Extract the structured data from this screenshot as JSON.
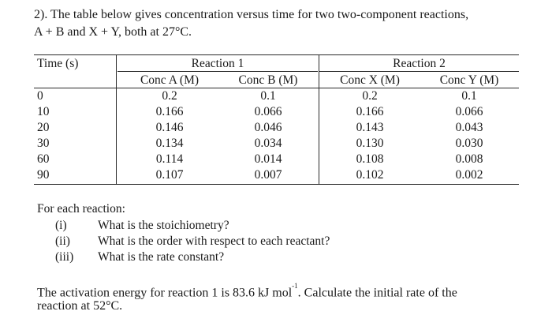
{
  "problem": {
    "line1": "2). The table below gives concentration versus time for two two-component reactions,",
    "line2": "A + B and X + Y, both at 27°C."
  },
  "table": {
    "time_header": "Time (s)",
    "reaction1_header": "Reaction 1",
    "reaction2_header": "Reaction 2",
    "col_a": "Conc A (M)",
    "col_b": "Conc B (M)",
    "col_x": "Conc X (M)",
    "col_y": "Conc Y (M)",
    "rows": [
      {
        "t": "0",
        "a": "0.2",
        "b": "0.1",
        "x": "0.2",
        "y": "0.1"
      },
      {
        "t": "10",
        "a": "0.166",
        "b": "0.066",
        "x": "0.166",
        "y": "0.066"
      },
      {
        "t": "20",
        "a": "0.146",
        "b": "0.046",
        "x": "0.143",
        "y": "0.043"
      },
      {
        "t": "30",
        "a": "0.134",
        "b": "0.034",
        "x": "0.130",
        "y": "0.030"
      },
      {
        "t": "60",
        "a": "0.114",
        "b": "0.014",
        "x": "0.108",
        "y": "0.008"
      },
      {
        "t": "90",
        "a": "0.107",
        "b": "0.007",
        "x": "0.102",
        "y": "0.002"
      }
    ]
  },
  "questions": {
    "lead": "For each reaction:",
    "items": [
      {
        "num": "(i)",
        "text": "What is the stoichiometry?"
      },
      {
        "num": "(ii)",
        "text": "What is the order with respect to each reactant?"
      },
      {
        "num": "(iii)",
        "text": "What is the rate constant?"
      }
    ]
  },
  "activation": {
    "line1_a": "The activation energy for reaction 1 is 83.6 kJ mol",
    "exponent": "-1",
    "line1_b": ". Calculate the initial rate of the",
    "line2": "reaction at 52°C."
  }
}
